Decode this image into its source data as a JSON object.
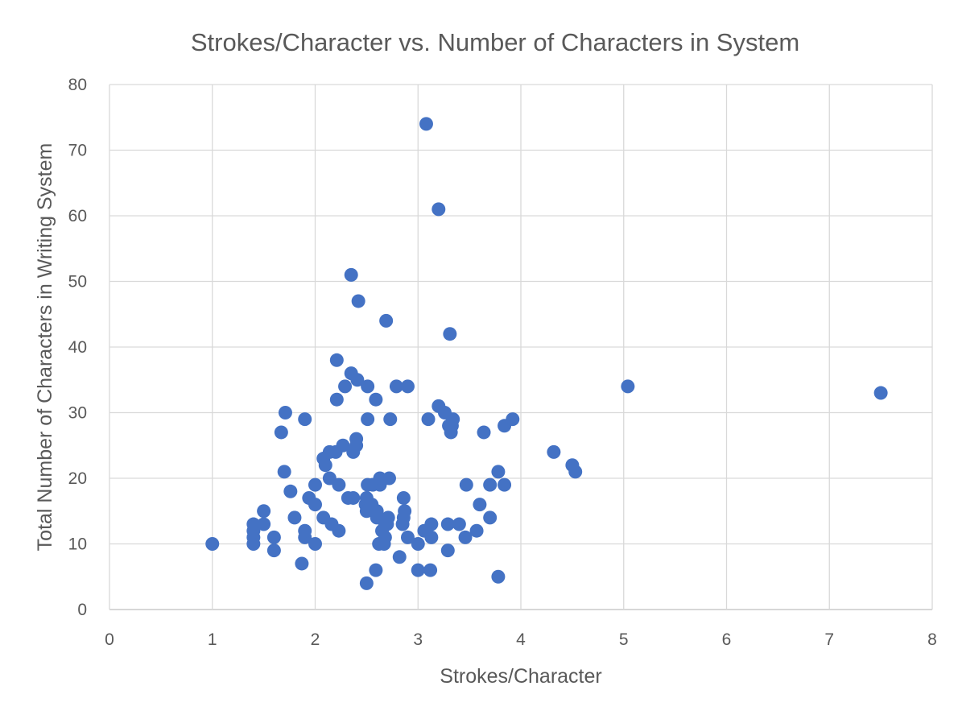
{
  "colors": {
    "marker": "#4472c4",
    "grid": "#d9d9d9",
    "text": "#595959"
  },
  "chart_data": {
    "type": "scatter",
    "title": "Strokes/Character vs. Number of Characters in System",
    "xlabel": "Strokes/Character",
    "ylabel": "Total Number of Characters in Writing System",
    "xlim": [
      0,
      8
    ],
    "ylim": [
      0,
      80
    ],
    "xticks": [
      0,
      1,
      2,
      3,
      4,
      5,
      6,
      7,
      8
    ],
    "yticks": [
      0,
      10,
      20,
      30,
      40,
      50,
      60,
      70,
      80
    ],
    "grid": true,
    "legend": "none",
    "series": [
      {
        "points": [
          [
            1.0,
            10
          ],
          [
            1.4,
            10
          ],
          [
            1.4,
            11
          ],
          [
            1.4,
            12
          ],
          [
            1.4,
            13
          ],
          [
            1.5,
            13
          ],
          [
            1.5,
            15
          ],
          [
            1.6,
            9
          ],
          [
            1.6,
            11
          ],
          [
            1.67,
            27
          ],
          [
            1.7,
            21
          ],
          [
            1.71,
            30
          ],
          [
            1.76,
            18
          ],
          [
            1.8,
            14
          ],
          [
            1.87,
            7
          ],
          [
            1.9,
            11
          ],
          [
            1.9,
            12
          ],
          [
            1.9,
            29
          ],
          [
            1.94,
            17
          ],
          [
            2.0,
            10
          ],
          [
            2.0,
            16
          ],
          [
            2.0,
            19
          ],
          [
            2.08,
            14
          ],
          [
            2.08,
            23
          ],
          [
            2.1,
            22
          ],
          [
            2.14,
            20
          ],
          [
            2.14,
            24
          ],
          [
            2.16,
            13
          ],
          [
            2.2,
            24
          ],
          [
            2.21,
            32
          ],
          [
            2.21,
            38
          ],
          [
            2.23,
            12
          ],
          [
            2.23,
            19
          ],
          [
            2.27,
            25
          ],
          [
            2.29,
            34
          ],
          [
            2.32,
            17
          ],
          [
            2.35,
            36
          ],
          [
            2.35,
            51
          ],
          [
            2.37,
            17
          ],
          [
            2.37,
            24
          ],
          [
            2.4,
            25
          ],
          [
            2.4,
            26
          ],
          [
            2.41,
            35
          ],
          [
            2.42,
            47
          ],
          [
            2.49,
            16
          ],
          [
            2.5,
            4
          ],
          [
            2.5,
            15
          ],
          [
            2.5,
            17
          ],
          [
            2.51,
            19
          ],
          [
            2.51,
            29
          ],
          [
            2.51,
            34
          ],
          [
            2.55,
            16
          ],
          [
            2.56,
            19
          ],
          [
            2.59,
            6
          ],
          [
            2.59,
            32
          ],
          [
            2.6,
            14
          ],
          [
            2.6,
            15
          ],
          [
            2.62,
            10
          ],
          [
            2.63,
            19
          ],
          [
            2.63,
            20
          ],
          [
            2.65,
            12
          ],
          [
            2.67,
            10
          ],
          [
            2.68,
            11
          ],
          [
            2.68,
            13
          ],
          [
            2.69,
            44
          ],
          [
            2.7,
            13
          ],
          [
            2.71,
            14
          ],
          [
            2.72,
            20
          ],
          [
            2.73,
            29
          ],
          [
            2.79,
            34
          ],
          [
            2.82,
            8
          ],
          [
            2.85,
            13
          ],
          [
            2.86,
            14
          ],
          [
            2.86,
            17
          ],
          [
            2.87,
            15
          ],
          [
            2.9,
            11
          ],
          [
            2.9,
            34
          ],
          [
            3.0,
            6
          ],
          [
            3.0,
            10
          ],
          [
            3.06,
            12
          ],
          [
            3.08,
            74
          ],
          [
            3.1,
            29
          ],
          [
            3.12,
            6
          ],
          [
            3.13,
            11
          ],
          [
            3.13,
            13
          ],
          [
            3.2,
            31
          ],
          [
            3.2,
            61
          ],
          [
            3.26,
            30
          ],
          [
            3.29,
            9
          ],
          [
            3.29,
            13
          ],
          [
            3.3,
            28
          ],
          [
            3.31,
            42
          ],
          [
            3.32,
            27
          ],
          [
            3.33,
            28
          ],
          [
            3.34,
            29
          ],
          [
            3.4,
            13
          ],
          [
            3.46,
            11
          ],
          [
            3.47,
            19
          ],
          [
            3.57,
            12
          ],
          [
            3.6,
            16
          ],
          [
            3.64,
            27
          ],
          [
            3.7,
            14
          ],
          [
            3.7,
            19
          ],
          [
            3.78,
            5
          ],
          [
            3.78,
            21
          ],
          [
            3.84,
            19
          ],
          [
            3.84,
            28
          ],
          [
            3.92,
            29
          ],
          [
            4.32,
            24
          ],
          [
            4.5,
            22
          ],
          [
            4.53,
            21
          ],
          [
            5.04,
            34
          ],
          [
            7.5,
            33
          ]
        ]
      }
    ]
  }
}
